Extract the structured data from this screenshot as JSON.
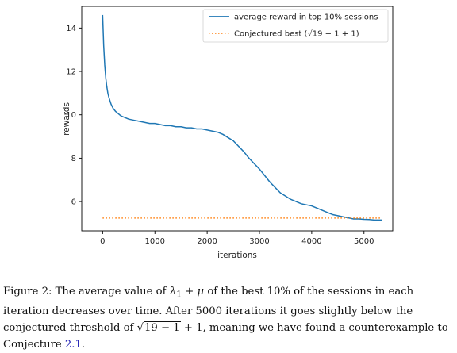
{
  "chart_data": {
    "type": "line",
    "xlabel": "iterations",
    "ylabel": "rewards",
    "xlim": [
      -400,
      5550
    ],
    "ylim": [
      4.65,
      15.0
    ],
    "xticks": [
      0,
      1000,
      2000,
      3000,
      4000,
      5000
    ],
    "yticks": [
      6,
      8,
      10,
      12,
      14
    ],
    "legend": {
      "placement": "top-right"
    },
    "series": [
      {
        "name": "average reward in top 10% sessions",
        "color": "#1f77b4",
        "style": "solid",
        "x": [
          0,
          20,
          40,
          60,
          80,
          100,
          120,
          140,
          160,
          180,
          200,
          250,
          300,
          350,
          400,
          500,
          600,
          700,
          800,
          900,
          1000,
          1100,
          1200,
          1300,
          1400,
          1500,
          1600,
          1700,
          1800,
          1900,
          2000,
          2100,
          2200,
          2300,
          2400,
          2500,
          2600,
          2700,
          2800,
          2900,
          3000,
          3100,
          3200,
          3300,
          3400,
          3500,
          3600,
          3700,
          3800,
          3900,
          4000,
          4100,
          4200,
          4300,
          4400,
          4500,
          4600,
          4700,
          4800,
          4900,
          5000,
          5100,
          5200,
          5300,
          5350
        ],
        "y": [
          14.6,
          13.2,
          12.3,
          11.7,
          11.3,
          11.0,
          10.8,
          10.65,
          10.5,
          10.4,
          10.3,
          10.15,
          10.05,
          9.95,
          9.9,
          9.8,
          9.75,
          9.7,
          9.65,
          9.6,
          9.6,
          9.55,
          9.5,
          9.5,
          9.45,
          9.45,
          9.4,
          9.4,
          9.35,
          9.35,
          9.3,
          9.25,
          9.2,
          9.1,
          8.95,
          8.8,
          8.55,
          8.3,
          8.0,
          7.75,
          7.5,
          7.2,
          6.9,
          6.65,
          6.4,
          6.25,
          6.1,
          6.0,
          5.9,
          5.85,
          5.8,
          5.7,
          5.6,
          5.5,
          5.4,
          5.35,
          5.3,
          5.25,
          5.2,
          5.2,
          5.18,
          5.17,
          5.15,
          5.15,
          5.15
        ]
      },
      {
        "name": "Conjectured best (√19 − 1 + 1)",
        "color": "#ff7f0e",
        "style": "dotted",
        "x": [
          0,
          5350
        ],
        "y": [
          5.24,
          5.24
        ]
      }
    ]
  },
  "caption": {
    "figure_label": "Figure 2:",
    "text_1": "The average value of",
    "lambda": "λ",
    "lambda_sub": "1",
    "plus": "+",
    "mu": "μ",
    "text_2": "of the best 10% of the sessions in each iteration decreases over time. After 5000 iterations it goes slightly below the conjectured threshold of",
    "sqrt_sign": "√",
    "sqrt_content": "19 − 1",
    "text_3": "+ 1, meaning we have found a counterexample to Conjecture",
    "ref": "2.1",
    "end": "."
  }
}
